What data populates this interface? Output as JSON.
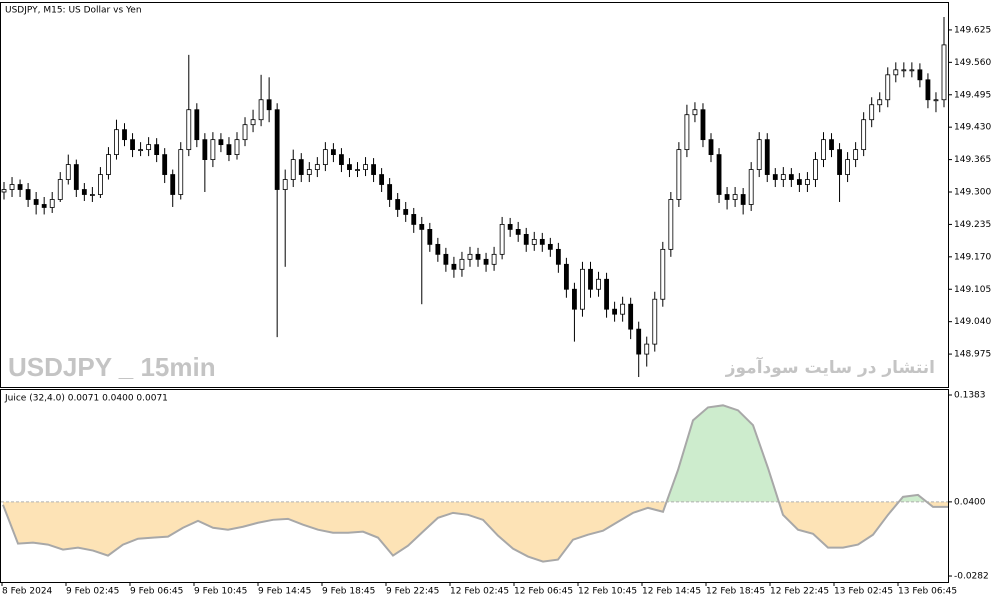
{
  "chart_data": [
    {
      "type": "candlestick",
      "title": "USDJPY, M15:  US Dollar vs Yen",
      "watermark": "USDJPY _ 15min",
      "annotation": "انتشار در سایت سودآموز",
      "ylim": [
        148.909,
        149.679
      ],
      "yticks": [
        149.625,
        {
          "value": 149.56,
          "label": "149.560"
        },
        149.495,
        {
          "value": 149.43,
          "label": "149.430"
        },
        149.365,
        {
          "value": 149.3,
          "label": "149.300"
        },
        149.235,
        {
          "value": 149.17,
          "label": "149.170"
        },
        149.105,
        {
          "value": 149.04,
          "label": "149.040"
        },
        148.975
      ],
      "xticks": [
        "8 Feb 2024",
        "9 Feb 02:45",
        "9 Feb 06:45",
        "9 Feb 10:45",
        "9 Feb 14:45",
        "9 Feb 18:45",
        "9 Feb 22:45",
        "12 Feb 02:45",
        "12 Feb 06:45",
        "12 Feb 10:45",
        "12 Feb 14:45",
        "12 Feb 18:45",
        "12 Feb 22:45",
        "13 Feb 02:45",
        "13 Feb 06:45"
      ],
      "up_color": "#ffffff",
      "down_color": "#000000",
      "ohlc": [
        [
          149.3,
          149.32,
          149.285,
          149.305
        ],
        [
          149.305,
          149.33,
          149.29,
          149.315
        ],
        [
          149.315,
          149.325,
          149.29,
          149.305
        ],
        [
          149.305,
          149.318,
          149.27,
          149.285
        ],
        [
          149.285,
          149.3,
          149.255,
          149.275
        ],
        [
          149.275,
          149.29,
          149.255,
          149.269
        ],
        [
          149.269,
          149.3,
          149.258,
          149.285
        ],
        [
          149.285,
          149.34,
          149.28,
          149.325
        ],
        [
          149.325,
          149.375,
          149.315,
          149.355
        ],
        [
          149.355,
          149.365,
          149.29,
          149.305
        ],
        [
          149.305,
          149.318,
          149.282,
          149.295
        ],
        [
          149.295,
          149.31,
          149.28,
          149.295
        ],
        [
          149.295,
          149.35,
          149.288,
          149.335
        ],
        [
          149.335,
          149.39,
          149.325,
          149.375
        ],
        [
          149.375,
          149.445,
          149.365,
          149.425
        ],
        [
          149.425,
          149.438,
          149.392,
          149.405
        ],
        [
          149.405,
          149.418,
          149.37,
          149.385
        ],
        [
          149.385,
          149.4,
          149.372,
          149.385
        ],
        [
          149.385,
          149.41,
          149.372,
          149.395
        ],
        [
          149.395,
          149.408,
          149.36,
          149.375
        ],
        [
          149.375,
          149.388,
          149.318,
          149.335
        ],
        [
          149.335,
          149.345,
          149.27,
          149.295
        ],
        [
          149.295,
          149.4,
          149.285,
          149.385
        ],
        [
          149.385,
          149.575,
          149.372,
          149.465
        ],
        [
          149.465,
          149.478,
          149.39,
          149.405
        ],
        [
          149.405,
          149.418,
          149.3,
          149.365
        ],
        [
          149.365,
          149.42,
          149.35,
          149.405
        ],
        [
          149.405,
          149.418,
          149.38,
          149.395
        ],
        [
          149.395,
          149.41,
          149.362,
          149.375
        ],
        [
          149.375,
          149.42,
          149.365,
          149.405
        ],
        [
          149.405,
          149.45,
          149.392,
          149.435
        ],
        [
          149.435,
          149.465,
          149.42,
          149.445
        ],
        [
          149.445,
          149.535,
          149.432,
          149.485
        ],
        [
          149.485,
          149.53,
          149.44,
          149.465
        ],
        [
          149.465,
          149.478,
          149.009,
          149.305
        ],
        [
          149.305,
          149.345,
          149.15,
          149.325
        ],
        [
          149.325,
          149.385,
          149.31,
          149.365
        ],
        [
          149.365,
          149.378,
          149.32,
          149.335
        ],
        [
          149.335,
          149.36,
          149.32,
          149.345
        ],
        [
          149.345,
          149.37,
          149.33,
          149.355
        ],
        [
          149.355,
          149.4,
          149.342,
          149.385
        ],
        [
          149.385,
          149.398,
          149.36,
          149.375
        ],
        [
          149.375,
          149.388,
          149.34,
          149.355
        ],
        [
          149.355,
          149.368,
          149.33,
          149.345
        ],
        [
          149.345,
          149.36,
          149.33,
          149.345
        ],
        [
          149.345,
          149.37,
          149.332,
          149.355
        ],
        [
          149.355,
          149.368,
          149.32,
          149.335
        ],
        [
          149.335,
          149.348,
          149.3,
          149.315
        ],
        [
          149.315,
          149.328,
          149.27,
          149.285
        ],
        [
          149.285,
          149.298,
          149.25,
          149.265
        ],
        [
          149.265,
          149.28,
          149.24,
          149.255
        ],
        [
          149.255,
          149.268,
          149.218,
          149.235
        ],
        [
          149.235,
          149.25,
          149.075,
          149.225
        ],
        [
          149.225,
          149.238,
          149.18,
          149.195
        ],
        [
          149.195,
          149.208,
          149.16,
          149.175
        ],
        [
          149.175,
          149.188,
          149.14,
          149.155
        ],
        [
          149.155,
          149.17,
          149.128,
          149.145
        ],
        [
          149.145,
          149.18,
          149.13,
          149.165
        ],
        [
          149.165,
          149.19,
          149.15,
          149.175
        ],
        [
          149.175,
          149.188,
          149.15,
          149.165
        ],
        [
          149.165,
          149.178,
          149.14,
          149.155
        ],
        [
          149.155,
          149.19,
          149.142,
          149.175
        ],
        [
          149.175,
          149.25,
          149.165,
          149.235
        ],
        [
          149.235,
          149.248,
          149.21,
          149.225
        ],
        [
          149.225,
          149.24,
          149.2,
          149.215
        ],
        [
          149.215,
          149.228,
          149.18,
          149.195
        ],
        [
          149.195,
          149.22,
          149.182,
          149.205
        ],
        [
          149.205,
          149.218,
          149.18,
          149.195
        ],
        [
          149.195,
          149.208,
          149.17,
          149.185
        ],
        [
          149.185,
          149.198,
          149.138,
          149.155
        ],
        [
          149.155,
          149.168,
          149.088,
          149.105
        ],
        [
          149.105,
          149.118,
          149.0,
          149.065
        ],
        [
          149.065,
          149.16,
          149.05,
          149.145
        ],
        [
          149.145,
          149.16,
          149.088,
          149.105
        ],
        [
          149.105,
          149.14,
          149.09,
          149.125
        ],
        [
          149.125,
          149.138,
          149.048,
          149.065
        ],
        [
          149.065,
          149.08,
          149.04,
          149.055
        ],
        [
          149.055,
          149.09,
          149.04,
          149.075
        ],
        [
          149.075,
          149.088,
          149.005,
          149.025
        ],
        [
          149.025,
          149.04,
          148.929,
          148.975
        ],
        [
          148.975,
          149.01,
          148.95,
          148.995
        ],
        [
          148.995,
          149.1,
          148.98,
          149.085
        ],
        [
          149.085,
          149.2,
          149.07,
          149.185
        ],
        [
          149.185,
          149.3,
          149.17,
          149.285
        ],
        [
          149.285,
          149.4,
          149.27,
          149.385
        ],
        [
          149.385,
          149.475,
          149.37,
          149.455
        ],
        [
          149.455,
          149.48,
          149.44,
          149.465
        ],
        [
          149.465,
          149.478,
          149.39,
          149.405
        ],
        [
          149.405,
          149.418,
          149.36,
          149.375
        ],
        [
          149.375,
          149.388,
          149.278,
          149.295
        ],
        [
          149.295,
          149.31,
          149.265,
          149.285
        ],
        [
          149.285,
          149.31,
          149.27,
          149.295
        ],
        [
          149.295,
          149.308,
          149.255,
          149.275
        ],
        [
          149.275,
          149.36,
          149.262,
          149.345
        ],
        [
          149.345,
          149.42,
          149.33,
          149.405
        ],
        [
          149.405,
          149.418,
          149.32,
          149.335
        ],
        [
          149.335,
          149.348,
          149.31,
          149.325
        ],
        [
          149.325,
          149.35,
          149.31,
          149.335
        ],
        [
          149.335,
          149.348,
          149.31,
          149.325
        ],
        [
          149.325,
          149.338,
          149.3,
          149.315
        ],
        [
          149.315,
          149.34,
          149.3,
          149.325
        ],
        [
          149.325,
          149.38,
          149.31,
          149.365
        ],
        [
          149.365,
          149.42,
          149.35,
          149.405
        ],
        [
          149.405,
          149.418,
          149.37,
          149.385
        ],
        [
          149.385,
          149.398,
          149.28,
          149.335
        ],
        [
          149.335,
          149.38,
          149.32,
          149.365
        ],
        [
          149.365,
          149.4,
          149.35,
          149.385
        ],
        [
          149.385,
          149.46,
          149.372,
          149.445
        ],
        [
          149.445,
          149.49,
          149.43,
          149.475
        ],
        [
          149.475,
          149.5,
          149.46,
          149.485
        ],
        [
          149.485,
          149.55,
          149.47,
          149.535
        ],
        [
          149.535,
          149.56,
          149.52,
          149.545
        ],
        [
          149.545,
          149.56,
          149.53,
          149.545
        ],
        [
          149.545,
          149.56,
          149.53,
          149.545
        ],
        [
          149.545,
          149.558,
          149.51,
          149.525
        ],
        [
          149.525,
          149.538,
          149.468,
          149.485
        ],
        [
          149.485,
          149.5,
          149.46,
          149.485
        ],
        [
          149.485,
          149.651,
          149.47,
          149.595
        ]
      ]
    },
    {
      "type": "area",
      "title": "Juice (32,4.0) 0.0071 0.0400 0.0071",
      "ylim": [
        -0.0337,
        0.1429
      ],
      "yticks": [
        0.1383,
        {
          "value": 0.04,
          "label": "0.0400"
        },
        -0.0282
      ],
      "level": 0.04,
      "color": "#a8a8a8",
      "fill_above": "#cdeccd",
      "fill_below": "#fde3b6",
      "values": [
        0.0373,
        0.0016,
        0.0025,
        0.0007,
        -0.0039,
        -0.0021,
        -0.0048,
        -0.0094,
        0.0007,
        0.0061,
        0.0071,
        0.008,
        0.0162,
        0.0226,
        0.0162,
        0.0144,
        0.0171,
        0.0208,
        0.0235,
        0.0244,
        0.019,
        0.0144,
        0.0116,
        0.0116,
        0.0126,
        0.0071,
        -0.0094,
        -0.0003,
        0.0126,
        0.0254,
        0.0299,
        0.0281,
        0.0235,
        0.0089,
        -0.003,
        -0.0103,
        -0.0149,
        -0.0131,
        0.0052,
        0.0098,
        0.0135,
        0.0217,
        0.0299,
        0.0345,
        0.0309,
        0.0693,
        0.115,
        0.1269,
        0.1288,
        0.1242,
        0.1105,
        0.0711,
        0.0281,
        0.0144,
        0.0107,
        -0.0021,
        -0.0021,
        0.0007,
        0.0098,
        0.0281,
        0.0446,
        0.0464,
        0.0354,
        0.0354
      ]
    }
  ]
}
